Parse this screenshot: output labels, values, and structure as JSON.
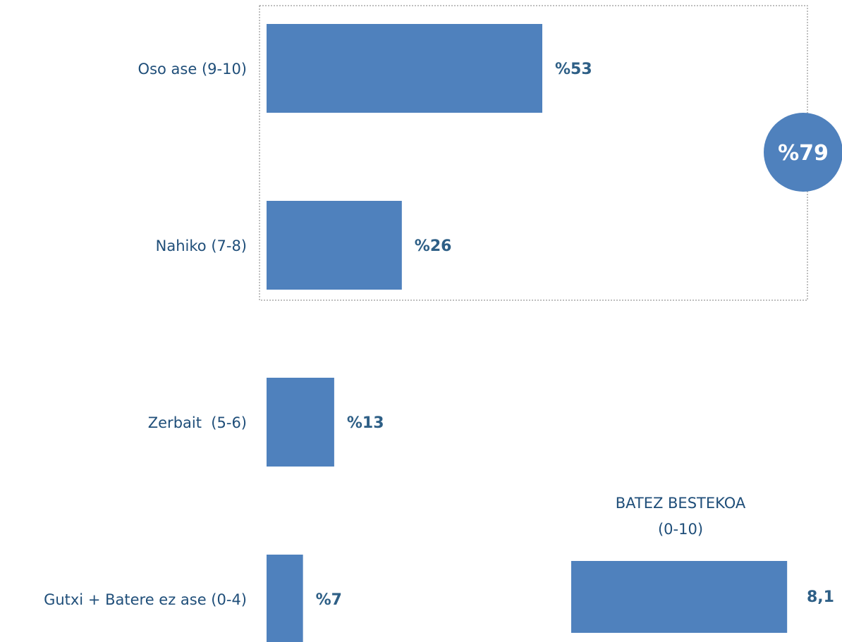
{
  "chart_data": {
    "type": "bar",
    "orientation": "horizontal",
    "categories": [
      "Oso ase (9-10)",
      "Nahiko (7-8)",
      "Zerbait  (5-6)",
      "Gutxi + Batere ez ase (0-4)"
    ],
    "values": [
      53,
      26,
      13,
      7
    ],
    "value_labels": [
      "%53",
      "%26",
      "%13",
      "%7"
    ],
    "xlim": [
      0,
      100
    ],
    "grid": false,
    "bar_color": "#4F81BD",
    "label_color": "#1F4E79",
    "group_total": {
      "members": [
        "Oso ase (9-10)",
        "Nahiko (7-8)"
      ],
      "value": 79,
      "label": "%79"
    },
    "average": {
      "title_line1": "BATEZ BESTEKOA",
      "title_line2": "(0-10)",
      "value": 8.1,
      "label": "8,1"
    }
  }
}
